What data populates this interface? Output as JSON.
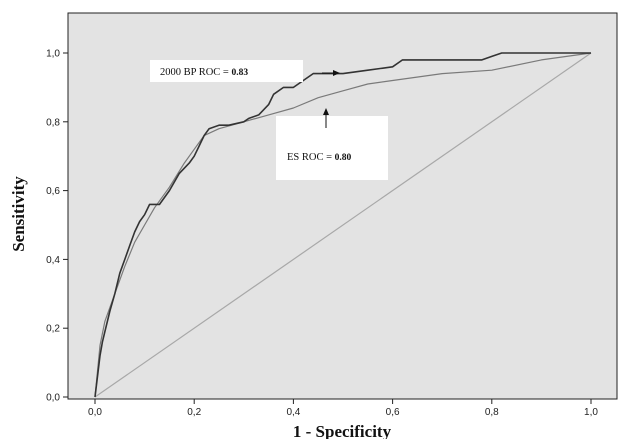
{
  "chart_data": {
    "type": "line",
    "xlabel": "1 - Specificity",
    "ylabel": "Sensitivity",
    "xlim": [
      0,
      1
    ],
    "ylim": [
      0,
      1
    ],
    "x_ticks": [
      "0,0",
      "0,2",
      "0,4",
      "0,6",
      "0,8",
      "1,0"
    ],
    "y_ticks": [
      "0,0",
      "0,2",
      "0,4",
      "0,6",
      "0,8",
      "1,0"
    ],
    "grid": false,
    "background": "#e3e3e3",
    "series": [
      {
        "name": "2000 BP",
        "auc": "0.83",
        "color": "#333333",
        "x": [
          0.0,
          0.005,
          0.01,
          0.015,
          0.02,
          0.03,
          0.04,
          0.05,
          0.06,
          0.07,
          0.08,
          0.09,
          0.1,
          0.11,
          0.13,
          0.15,
          0.17,
          0.19,
          0.2,
          0.21,
          0.22,
          0.23,
          0.25,
          0.27,
          0.3,
          0.31,
          0.33,
          0.35,
          0.36,
          0.38,
          0.4,
          0.42,
          0.44,
          0.46,
          0.5,
          0.55,
          0.6,
          0.62,
          0.7,
          0.78,
          0.8,
          0.82,
          0.9,
          1.0
        ],
        "y": [
          0.0,
          0.06,
          0.12,
          0.16,
          0.19,
          0.25,
          0.3,
          0.36,
          0.4,
          0.44,
          0.48,
          0.51,
          0.53,
          0.56,
          0.56,
          0.6,
          0.65,
          0.68,
          0.7,
          0.73,
          0.76,
          0.78,
          0.79,
          0.79,
          0.8,
          0.81,
          0.82,
          0.85,
          0.88,
          0.9,
          0.9,
          0.92,
          0.94,
          0.94,
          0.94,
          0.95,
          0.96,
          0.98,
          0.98,
          0.98,
          0.99,
          1.0,
          1.0,
          1.0
        ]
      },
      {
        "name": "ES",
        "auc": "0.80",
        "color": "#7a7a7a",
        "x": [
          0.0,
          0.01,
          0.02,
          0.04,
          0.06,
          0.08,
          0.1,
          0.12,
          0.15,
          0.18,
          0.2,
          0.22,
          0.25,
          0.3,
          0.35,
          0.4,
          0.45,
          0.5,
          0.55,
          0.6,
          0.7,
          0.8,
          0.9,
          1.0
        ],
        "y": [
          0.0,
          0.15,
          0.22,
          0.3,
          0.38,
          0.45,
          0.5,
          0.55,
          0.61,
          0.68,
          0.72,
          0.76,
          0.78,
          0.8,
          0.82,
          0.84,
          0.87,
          0.89,
          0.91,
          0.92,
          0.94,
          0.95,
          0.98,
          1.0
        ]
      },
      {
        "name": "reference",
        "color": "#a8a8a8",
        "x": [
          0,
          1
        ],
        "y": [
          0,
          1
        ]
      }
    ],
    "annotations": [
      {
        "id": "bp",
        "text": "2000 BP ROC = ",
        "value": "0.83"
      },
      {
        "id": "es",
        "text": "ES ROC = ",
        "value": "0.80"
      }
    ]
  }
}
